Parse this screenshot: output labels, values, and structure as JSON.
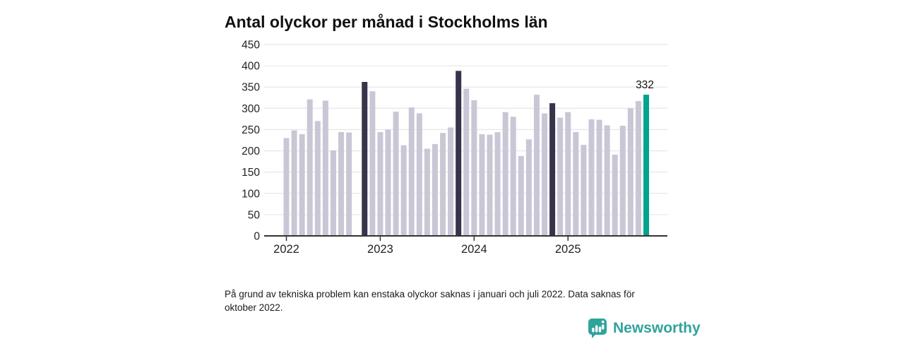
{
  "title": "Antal olyckor per månad i Stockholms län",
  "footnote": {
    "text": "På grund av tekniska problem kan enstaka olyckor saknas i januari och juli 2022. Data saknas för oktober 2022."
  },
  "logo": {
    "text": "Newsworthy",
    "icon": "bar-chart-speech-bubble-icon",
    "color": "#2fa49b"
  },
  "colors": {
    "bar_default": "#c9c7d5",
    "bar_november_highlight": "#36344a",
    "bar_current": "#00a290",
    "gridline": "#e8e8e8",
    "axis": "#333333",
    "tick_text": "#222222",
    "value_label_text": "#111111"
  },
  "chart_data": {
    "type": "bar",
    "title": "Antal olyckor per månad i Stockholms län",
    "xlabel": "",
    "ylabel": "",
    "ylim": [
      0,
      450
    ],
    "y_ticks": [
      0,
      50,
      100,
      150,
      200,
      250,
      300,
      350,
      400,
      450
    ],
    "x_tick_labels": [
      "2022",
      "2023",
      "2024",
      "2025"
    ],
    "grid": "horizontal",
    "legend": "none",
    "highlight_note": "November bars highlighted dark; latest month (Nov 2025) teal with value label",
    "months": [
      {
        "month": "2022-01",
        "value": 230,
        "highlight": "none"
      },
      {
        "month": "2022-02",
        "value": 248,
        "highlight": "none"
      },
      {
        "month": "2022-03",
        "value": 239,
        "highlight": "none"
      },
      {
        "month": "2022-04",
        "value": 321,
        "highlight": "none"
      },
      {
        "month": "2022-05",
        "value": 270,
        "highlight": "none"
      },
      {
        "month": "2022-06",
        "value": 318,
        "highlight": "none"
      },
      {
        "month": "2022-07",
        "value": 201,
        "highlight": "none"
      },
      {
        "month": "2022-08",
        "value": 244,
        "highlight": "none"
      },
      {
        "month": "2022-09",
        "value": 243,
        "highlight": "none"
      },
      {
        "month": "2022-10",
        "value": null,
        "highlight": "missing"
      },
      {
        "month": "2022-11",
        "value": 362,
        "highlight": "dark"
      },
      {
        "month": "2022-12",
        "value": 340,
        "highlight": "none"
      },
      {
        "month": "2023-01",
        "value": 244,
        "highlight": "none"
      },
      {
        "month": "2023-02",
        "value": 250,
        "highlight": "none"
      },
      {
        "month": "2023-03",
        "value": 292,
        "highlight": "none"
      },
      {
        "month": "2023-04",
        "value": 213,
        "highlight": "none"
      },
      {
        "month": "2023-05",
        "value": 302,
        "highlight": "none"
      },
      {
        "month": "2023-06",
        "value": 288,
        "highlight": "none"
      },
      {
        "month": "2023-07",
        "value": 205,
        "highlight": "none"
      },
      {
        "month": "2023-08",
        "value": 216,
        "highlight": "none"
      },
      {
        "month": "2023-09",
        "value": 242,
        "highlight": "none"
      },
      {
        "month": "2023-10",
        "value": 255,
        "highlight": "none"
      },
      {
        "month": "2023-11",
        "value": 388,
        "highlight": "dark"
      },
      {
        "month": "2023-12",
        "value": 346,
        "highlight": "none"
      },
      {
        "month": "2024-01",
        "value": 319,
        "highlight": "none"
      },
      {
        "month": "2024-02",
        "value": 239,
        "highlight": "none"
      },
      {
        "month": "2024-03",
        "value": 238,
        "highlight": "none"
      },
      {
        "month": "2024-04",
        "value": 244,
        "highlight": "none"
      },
      {
        "month": "2024-05",
        "value": 291,
        "highlight": "none"
      },
      {
        "month": "2024-06",
        "value": 280,
        "highlight": "none"
      },
      {
        "month": "2024-07",
        "value": 188,
        "highlight": "none"
      },
      {
        "month": "2024-08",
        "value": 227,
        "highlight": "none"
      },
      {
        "month": "2024-09",
        "value": 332,
        "highlight": "none"
      },
      {
        "month": "2024-10",
        "value": 288,
        "highlight": "none"
      },
      {
        "month": "2024-11",
        "value": 312,
        "highlight": "dark"
      },
      {
        "month": "2024-12",
        "value": 278,
        "highlight": "none"
      },
      {
        "month": "2025-01",
        "value": 291,
        "highlight": "none"
      },
      {
        "month": "2025-02",
        "value": 244,
        "highlight": "none"
      },
      {
        "month": "2025-03",
        "value": 214,
        "highlight": "none"
      },
      {
        "month": "2025-04",
        "value": 274,
        "highlight": "none"
      },
      {
        "month": "2025-05",
        "value": 273,
        "highlight": "none"
      },
      {
        "month": "2025-06",
        "value": 260,
        "highlight": "none"
      },
      {
        "month": "2025-07",
        "value": 191,
        "highlight": "none"
      },
      {
        "month": "2025-08",
        "value": 259,
        "highlight": "none"
      },
      {
        "month": "2025-09",
        "value": 300,
        "highlight": "none"
      },
      {
        "month": "2025-10",
        "value": 317,
        "highlight": "none"
      },
      {
        "month": "2025-11",
        "value": 332,
        "highlight": "current",
        "label": "332"
      }
    ]
  }
}
